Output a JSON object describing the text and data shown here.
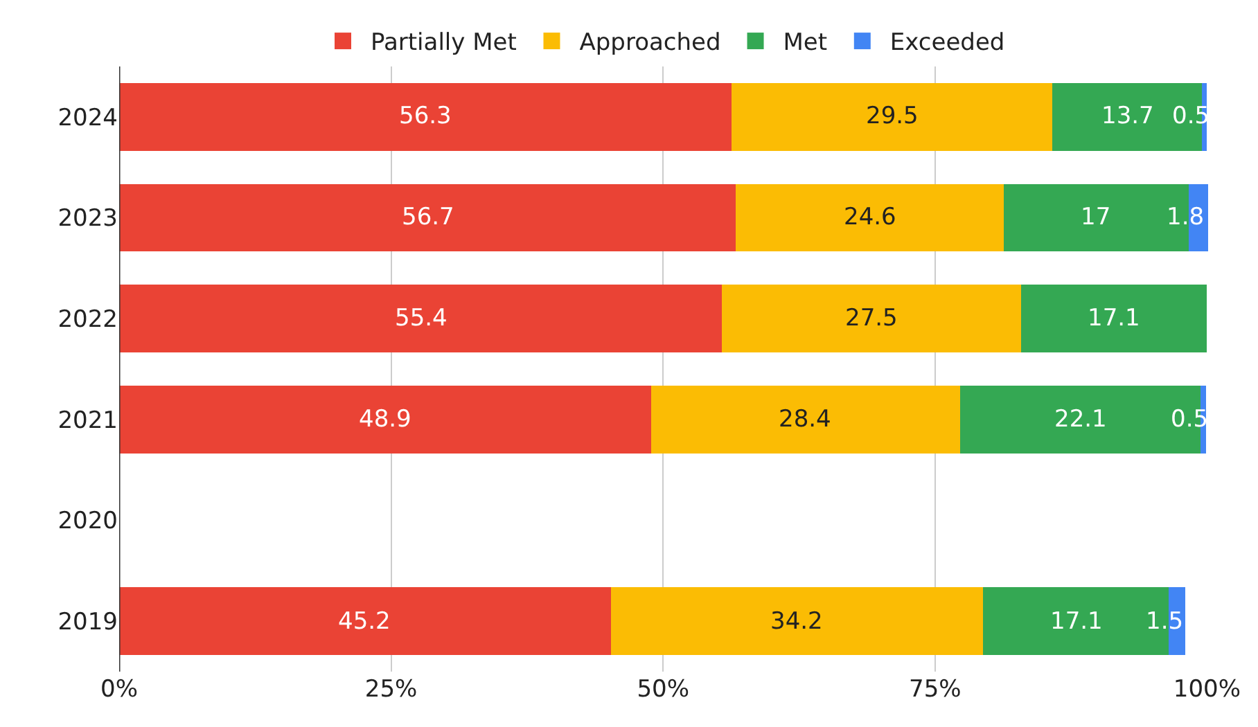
{
  "chart_data": {
    "type": "bar",
    "orientation": "horizontal",
    "stacked": true,
    "categories": [
      "2024",
      "2023",
      "2022",
      "2021",
      "2020",
      "2019"
    ],
    "series": [
      {
        "name": "Partially Met",
        "color": "#ea4335",
        "values": [
          56.3,
          56.7,
          55.4,
          48.9,
          null,
          45.2
        ]
      },
      {
        "name": "Approached",
        "color": "#fbbc04",
        "values": [
          29.5,
          24.6,
          27.5,
          28.4,
          null,
          34.2
        ]
      },
      {
        "name": "Met",
        "color": "#34a853",
        "values": [
          13.7,
          17,
          17.1,
          22.1,
          null,
          17.1
        ]
      },
      {
        "name": "Exceeded",
        "color": "#4285f4",
        "values": [
          0.5,
          1.8,
          null,
          0.5,
          null,
          1.5
        ]
      }
    ],
    "xlim": [
      0,
      100.1
    ],
    "xticks": [
      {
        "value": 0,
        "label": "0%"
      },
      {
        "value": 25,
        "label": "25%"
      },
      {
        "value": 50,
        "label": "50%"
      },
      {
        "value": 75,
        "label": "75%"
      },
      {
        "value": 100,
        "label": "100%"
      }
    ],
    "grid": "x",
    "legend": "top",
    "data_labels": true
  }
}
